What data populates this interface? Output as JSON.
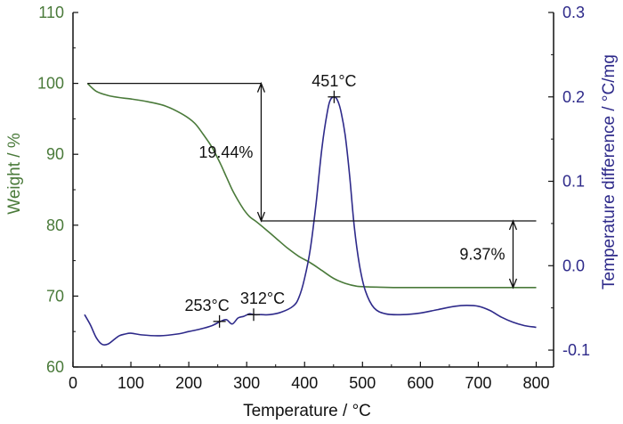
{
  "chart_data": {
    "type": "line",
    "title": "",
    "xlabel": "Temperature / °C",
    "ylabel_left": "Weight / %",
    "ylabel_right": "Temperature difference / °C/mg",
    "xlim": [
      0,
      830
    ],
    "ylim_left": [
      60,
      110
    ],
    "ylim_right": [
      -0.12,
      0.3
    ],
    "x_ticks": [
      "0",
      "100",
      "200",
      "300",
      "400",
      "500",
      "600",
      "700",
      "800"
    ],
    "y_left_ticks": [
      "60",
      "70",
      "80",
      "90",
      "100",
      "110"
    ],
    "y_right_ticks": [
      "-0.1",
      "0.0",
      "0.1",
      "0.2",
      "0.3"
    ],
    "grid": false,
    "colors": {
      "weight": "#4a7a3a",
      "dta": "#2e2a8a",
      "axis": "#111111"
    },
    "series": [
      {
        "axis": "left",
        "x": [
          25,
          40,
          60,
          80,
          100,
          130,
          160,
          190,
          210,
          225,
          240,
          255,
          265,
          275,
          285,
          295,
          305,
          315,
          330,
          350,
          370,
          390,
          410,
          430,
          450,
          470,
          490,
          510,
          530,
          560,
          600,
          700,
          800
        ],
        "y": [
          100,
          98.9,
          98.3,
          98.0,
          97.8,
          97.4,
          96.8,
          95.6,
          94.4,
          92.8,
          91.0,
          88.6,
          86.8,
          85.0,
          83.5,
          82.2,
          81.2,
          80.6,
          79.6,
          78.2,
          76.8,
          75.6,
          74.7,
          73.6,
          72.5,
          71.8,
          71.4,
          71.3,
          71.25,
          71.2,
          71.2,
          71.2,
          71.2
        ]
      },
      {
        "axis": "right",
        "x": [
          20,
          30,
          40,
          50,
          60,
          70,
          80,
          90,
          100,
          120,
          150,
          180,
          200,
          220,
          240,
          255,
          265,
          275,
          285,
          295,
          305,
          312,
          325,
          340,
          360,
          380,
          390,
          400,
          410,
          420,
          430,
          440,
          445,
          451,
          456,
          462,
          470,
          478,
          486,
          495,
          505,
          520,
          540,
          570,
          600,
          630,
          660,
          680,
          700,
          720,
          740,
          760,
          780,
          800
        ],
        "y": [
          -0.058,
          -0.07,
          -0.085,
          -0.093,
          -0.093,
          -0.088,
          -0.083,
          -0.081,
          -0.08,
          -0.082,
          -0.083,
          -0.081,
          -0.078,
          -0.075,
          -0.071,
          -0.066,
          -0.064,
          -0.069,
          -0.062,
          -0.06,
          -0.057,
          -0.058,
          -0.058,
          -0.058,
          -0.055,
          -0.048,
          -0.038,
          -0.015,
          0.02,
          0.075,
          0.14,
          0.185,
          0.197,
          0.2,
          0.197,
          0.185,
          0.155,
          0.105,
          0.045,
          0.0,
          -0.03,
          -0.05,
          -0.057,
          -0.058,
          -0.056,
          -0.052,
          -0.048,
          -0.047,
          -0.048,
          -0.053,
          -0.061,
          -0.067,
          -0.071,
          -0.073
        ]
      }
    ],
    "annotations": {
      "peak_label": "451°C",
      "onset1_label": "253°C",
      "onset2_label": "312°C",
      "loss1_label": "19.44%",
      "loss2_label": "9.37%",
      "peak_point": [
        451,
        0.2
      ],
      "onset1_point": [
        253,
        -0.066
      ],
      "onset2_point": [
        312,
        -0.058
      ],
      "loss1_top_weight": 100,
      "loss1_bottom_weight": 80.6,
      "loss1_x": 325,
      "loss1_line_x_range": [
        25,
        325
      ],
      "loss2_top_weight": 80.6,
      "loss2_bottom_weight": 71.2,
      "loss2_x": 760,
      "loss2_line_x_range": [
        325,
        800
      ],
      "baseline_weight": 71.2
    }
  }
}
